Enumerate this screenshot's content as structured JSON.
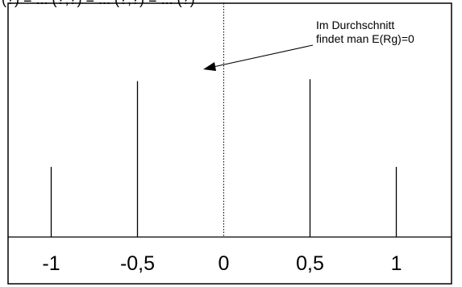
{
  "chart_data": {
    "type": "bar",
    "subtype": "stick / probability mass function",
    "title": "(?) = ... (?,?) = ... (?,?) = ... (?)",
    "xlabel": "",
    "ylabel": "",
    "x": [
      -1,
      -0.5,
      0.5,
      1
    ],
    "values": [
      0.18,
      0.4,
      0.405,
      0.18
    ],
    "x_ticks": [
      -1,
      -0.5,
      0,
      0.5,
      1
    ],
    "x_tick_labels": [
      "-1",
      "-0,5",
      "0",
      "0,5",
      "1"
    ],
    "xlim": [
      -1.25,
      1.32
    ],
    "ylim": [
      0,
      0.6
    ],
    "mean_line": {
      "x": 0,
      "style": "dotted"
    },
    "annotation": {
      "lines": [
        "Im Durchschnitt",
        "findet man E(Rg)=0"
      ],
      "points_to_x": 0
    },
    "grid": false,
    "legend": "none",
    "colors": {
      "lines": "#000000",
      "background": "#ffffff",
      "frame": "#000000"
    }
  }
}
